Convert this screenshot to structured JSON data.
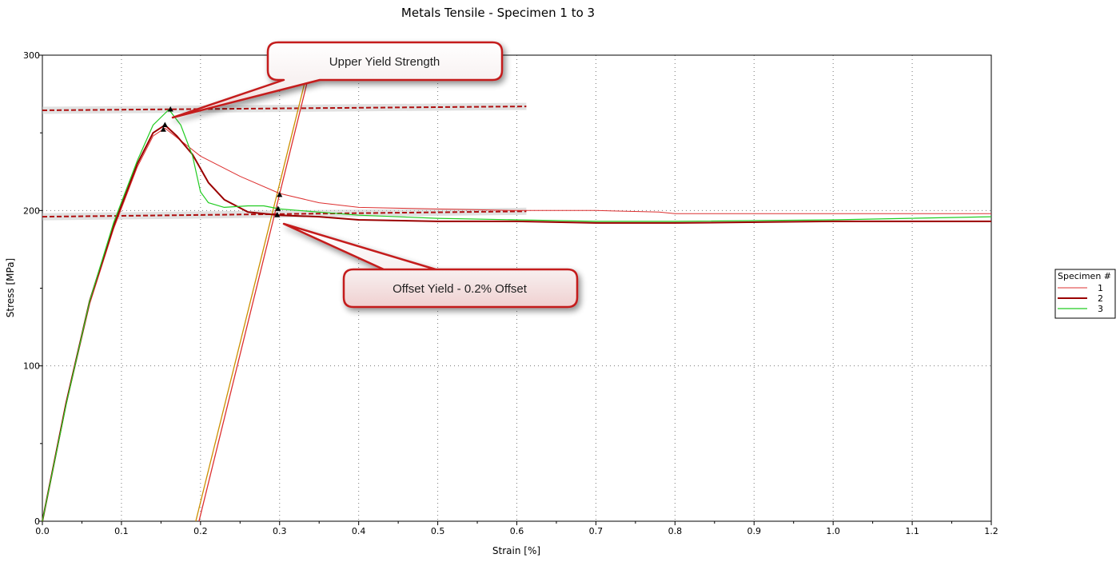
{
  "chart_data": {
    "type": "line",
    "title": "Metals Tensile - Specimen 1 to 3",
    "xlabel": "Strain [%]",
    "ylabel": "Stress [MPa]",
    "xlim": [
      0,
      1.2
    ],
    "ylim": [
      0,
      300
    ],
    "x_ticks": [
      "0.0",
      "0.1",
      "0.2",
      "0.3",
      "0.4",
      "0.5",
      "0.6",
      "0.7",
      "0.8",
      "0.9",
      "1.0",
      "1.1",
      "1.2"
    ],
    "y_ticks": [
      "0",
      "100",
      "200",
      "300"
    ],
    "grid": true,
    "legend": {
      "title": "Specimen #",
      "placement": "right"
    },
    "series": [
      {
        "name": "1",
        "color": "#dd3030",
        "points": [
          [
            0,
            0
          ],
          [
            0.03,
            75
          ],
          [
            0.06,
            140
          ],
          [
            0.09,
            188
          ],
          [
            0.12,
            228
          ],
          [
            0.14,
            248
          ],
          [
            0.155,
            253
          ],
          [
            0.17,
            247
          ],
          [
            0.2,
            235
          ],
          [
            0.25,
            222
          ],
          [
            0.3,
            211
          ],
          [
            0.35,
            205
          ],
          [
            0.4,
            202
          ],
          [
            0.5,
            201
          ],
          [
            0.6,
            200
          ],
          [
            0.7,
            200
          ],
          [
            0.78,
            199
          ],
          [
            0.8,
            198
          ],
          [
            1.0,
            198
          ],
          [
            1.2,
            198
          ]
        ]
      },
      {
        "name": "2",
        "color": "#9a0000",
        "points": [
          [
            0,
            0
          ],
          [
            0.03,
            76
          ],
          [
            0.06,
            142
          ],
          [
            0.09,
            190
          ],
          [
            0.12,
            230
          ],
          [
            0.14,
            250
          ],
          [
            0.155,
            255
          ],
          [
            0.17,
            248
          ],
          [
            0.19,
            236
          ],
          [
            0.21,
            218
          ],
          [
            0.23,
            207
          ],
          [
            0.26,
            199
          ],
          [
            0.3,
            197
          ],
          [
            0.35,
            196
          ],
          [
            0.4,
            194
          ],
          [
            0.5,
            193
          ],
          [
            0.6,
            193
          ],
          [
            0.7,
            192
          ],
          [
            0.8,
            192
          ],
          [
            1.0,
            193
          ],
          [
            1.2,
            193
          ]
        ]
      },
      {
        "name": "3",
        "color": "#22cc22",
        "points": [
          [
            0,
            0
          ],
          [
            0.03,
            75
          ],
          [
            0.06,
            142
          ],
          [
            0.09,
            192
          ],
          [
            0.12,
            232
          ],
          [
            0.14,
            255
          ],
          [
            0.16,
            265
          ],
          [
            0.175,
            255
          ],
          [
            0.19,
            235
          ],
          [
            0.2,
            212
          ],
          [
            0.21,
            205
          ],
          [
            0.23,
            202
          ],
          [
            0.26,
            203
          ],
          [
            0.28,
            203
          ],
          [
            0.3,
            201
          ],
          [
            0.35,
            199
          ],
          [
            0.4,
            197
          ],
          [
            0.5,
            195
          ],
          [
            0.6,
            194
          ],
          [
            0.7,
            193
          ],
          [
            0.8,
            193
          ],
          [
            1.0,
            194
          ],
          [
            1.2,
            196
          ]
        ]
      }
    ],
    "offset_lines": [
      {
        "color": "#cc9000",
        "points": [
          [
            0.194,
            0
          ],
          [
            0.335,
            289
          ]
        ]
      },
      {
        "color": "#dd3030",
        "points": [
          [
            0.198,
            0
          ],
          [
            0.338,
            289
          ]
        ]
      }
    ],
    "reference_lines": [
      {
        "name": "upper",
        "color": "#b01010",
        "points": [
          [
            0,
            264.5
          ],
          [
            0.612,
            267
          ]
        ]
      },
      {
        "name": "offset",
        "color": "#b01010",
        "points": [
          [
            0,
            196
          ],
          [
            0.612,
            199.5
          ]
        ]
      }
    ],
    "markers": [
      {
        "series": "3",
        "x": 0.162,
        "y": 265
      },
      {
        "series": "2",
        "x": 0.155,
        "y": 255
      },
      {
        "series": "1",
        "x": 0.153,
        "y": 252
      },
      {
        "series": "1",
        "x": 0.3,
        "y": 210
      },
      {
        "series": "3",
        "x": 0.298,
        "y": 201
      },
      {
        "series": "2",
        "x": 0.297,
        "y": 197
      }
    ],
    "annotations": [
      {
        "text": "Upper Yield Strength",
        "points_to": [
          0.163,
          260
        ]
      },
      {
        "text": "Offset Yield - 0.2% Offset",
        "points_to": [
          0.3,
          192
        ]
      }
    ]
  }
}
